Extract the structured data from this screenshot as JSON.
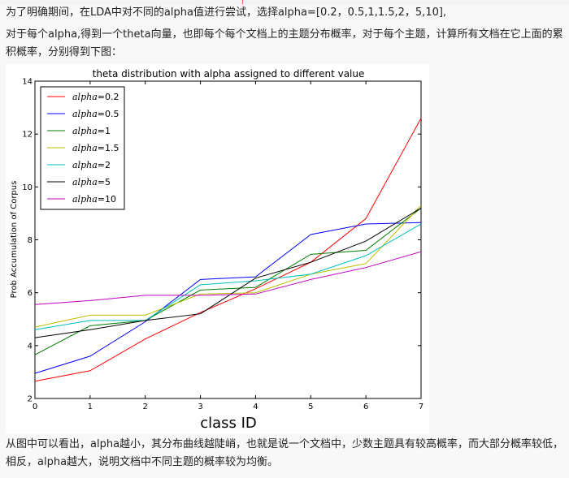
{
  "text": {
    "intro_line": "为了明确期间，在LDA中对不同的alpha值进行尝试，选择alpha=[0.2，0.5,1,1.5,2，5,10],",
    "intro_para": "对于每个alpha,得到一个theta向量，也即每个每个文档上的主题分布概率，对于每个主题，计算所有文档在它上面的累积概率，分别得到下图：",
    "conclusion_para": "从图中可以看出，alpha越小，其分布曲线越陡峭，也就是说一个文档中，少数主题具有较高概率，而大部分概率较低，相反，alpha越大，说明文档中不同主题的概率较为均衡。"
  },
  "chart_data": {
    "type": "line",
    "title": "theta distribution with alpha assigned to different value",
    "xlabel": "class ID",
    "ylabel": "Prob Accumulation of Corpus",
    "xlim": [
      0,
      7
    ],
    "ylim": [
      2,
      14
    ],
    "x": [
      0,
      1,
      2,
      3,
      4,
      5,
      6,
      7
    ],
    "xticks": [
      "0",
      "1",
      "2",
      "3",
      "4",
      "5",
      "6",
      "7"
    ],
    "yticks": [
      "2",
      "4",
      "6",
      "8",
      "10",
      "12",
      "14"
    ],
    "grid": false,
    "legend_position": "top-left",
    "series": [
      {
        "name": "=0.2",
        "legend_math": "alpha",
        "color": "#ff0000",
        "values": [
          2.65,
          3.05,
          4.25,
          5.25,
          6.15,
          7.15,
          8.8,
          12.6
        ]
      },
      {
        "name": "=0.5",
        "legend_math": "alpha",
        "color": "#0000ff",
        "values": [
          2.95,
          3.6,
          4.9,
          6.5,
          6.6,
          8.2,
          8.6,
          8.65
        ]
      },
      {
        "name": "=1",
        "legend_math": "alpha",
        "color": "#007f00",
        "values": [
          3.65,
          4.75,
          4.95,
          6.1,
          6.2,
          7.45,
          7.6,
          9.2
        ]
      },
      {
        "name": "=1.5",
        "legend_math": "alpha",
        "color": "#bfbf00",
        "values": [
          4.7,
          5.15,
          5.15,
          5.95,
          6.0,
          6.7,
          7.1,
          9.3
        ]
      },
      {
        "name": "=2",
        "legend_math": "alpha",
        "color": "#00bfbf",
        "values": [
          4.6,
          4.95,
          4.95,
          6.3,
          6.45,
          6.7,
          7.4,
          8.6
        ]
      },
      {
        "name": "=5",
        "legend_math": "alpha",
        "color": "#000000",
        "values": [
          4.3,
          4.6,
          4.95,
          5.2,
          6.55,
          7.15,
          7.95,
          9.2
        ]
      },
      {
        "name": "=10",
        "legend_math": "alpha",
        "color": "#bf00bf",
        "values": [
          5.55,
          5.7,
          5.9,
          5.9,
          5.95,
          6.5,
          6.95,
          7.55
        ]
      }
    ]
  }
}
